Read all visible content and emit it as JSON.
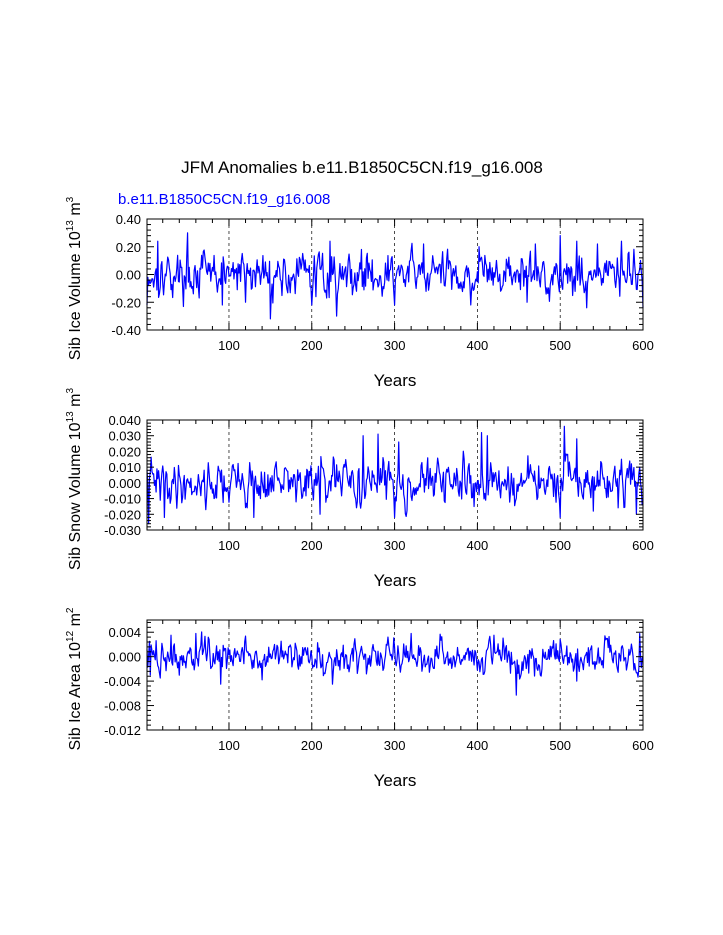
{
  "title": "JFM Anomalies b.e11.B1850C5CN.f19_g16.008",
  "subtitle": "b.e11.B1850C5CN.f19_g16.008",
  "colors": {
    "series": "#0000ff",
    "axes": "#000000"
  },
  "chart_data": [
    {
      "type": "line",
      "id": "ice-volume",
      "ylabel": {
        "text": "Sib Ice Volume 10",
        "exp": "13",
        "unit": " m",
        "unit_exp": "3"
      },
      "xlabel": "Years",
      "xlim": [
        1,
        600
      ],
      "ylim": [
        -0.4,
        0.4
      ],
      "xticks": [
        100,
        200,
        300,
        400,
        500,
        600
      ],
      "yticks": [
        -0.4,
        -0.2,
        0.0,
        0.2,
        0.4
      ],
      "ytick_labels": [
        "-0.40",
        "-0.20",
        "0.00",
        "0.20",
        "0.40"
      ],
      "grid_x": true,
      "series": [
        {
          "name": "b.e11.B1850C5CN.f19_g16.008",
          "noise_amp": 0.1,
          "spikes": [
            [
              1,
              -0.22
            ],
            [
              14,
              0.24
            ],
            [
              50,
              0.3
            ],
            [
              92,
              -0.22
            ],
            [
              120,
              -0.2
            ],
            [
              150,
              -0.32
            ],
            [
              200,
              -0.22
            ],
            [
              222,
              0.24
            ],
            [
              230,
              -0.3
            ],
            [
              260,
              0.18
            ],
            [
              300,
              -0.22
            ],
            [
              335,
              0.22
            ],
            [
              392,
              -0.22
            ],
            [
              402,
              0.2
            ],
            [
              460,
              -0.2
            ],
            [
              470,
              0.22
            ],
            [
              500,
              0.28
            ],
            [
              520,
              0.24
            ],
            [
              532,
              -0.24
            ],
            [
              545,
              0.22
            ],
            [
              574,
              0.24
            ],
            [
              600,
              -0.24
            ]
          ],
          "seed": 17,
          "x": [
            1,
            600
          ]
        }
      ]
    },
    {
      "type": "line",
      "id": "snow-volume",
      "ylabel": {
        "text": "Sib Snow Volume 10",
        "exp": "13",
        "unit": " m",
        "unit_exp": "3"
      },
      "xlabel": "Years",
      "xlim": [
        1,
        600
      ],
      "ylim": [
        -0.03,
        0.04
      ],
      "xticks": [
        100,
        200,
        300,
        400,
        500,
        600
      ],
      "yticks": [
        -0.03,
        -0.02,
        -0.01,
        0.0,
        0.01,
        0.02,
        0.03,
        0.04
      ],
      "ytick_labels": [
        "-0.030",
        "-0.020",
        "-0.010",
        "0.000",
        "0.010",
        "0.020",
        "0.030",
        "0.040"
      ],
      "grid_x": true,
      "series": [
        {
          "name": "b.e11.B1850C5CN.f19_g16.008",
          "noise_amp": 0.009,
          "spikes": [
            [
              3,
              -0.026
            ],
            [
              22,
              -0.022
            ],
            [
              130,
              -0.022
            ],
            [
              210,
              -0.02
            ],
            [
              262,
              0.03
            ],
            [
              280,
              0.031
            ],
            [
              300,
              -0.022
            ],
            [
              305,
              0.026
            ],
            [
              405,
              0.032
            ],
            [
              412,
              0.03
            ],
            [
              500,
              -0.022
            ],
            [
              505,
              0.036
            ],
            [
              520,
              0.028
            ],
            [
              540,
              -0.018
            ],
            [
              592,
              -0.02
            ]
          ],
          "seed": 41,
          "x": [
            1,
            600
          ]
        }
      ]
    },
    {
      "type": "line",
      "id": "ice-area",
      "ylabel": {
        "text": "Sib Ice Area 10",
        "exp": "12",
        "unit": " m",
        "unit_exp": "2"
      },
      "xlabel": "Years",
      "xlim": [
        1,
        600
      ],
      "ylim": [
        -0.012,
        0.006
      ],
      "xticks": [
        100,
        200,
        300,
        400,
        500,
        600
      ],
      "yticks": [
        -0.012,
        -0.008,
        -0.004,
        0.0,
        0.004
      ],
      "ytick_labels": [
        "-0.012",
        "-0.008",
        "-0.004",
        "0.000",
        "0.004"
      ],
      "grid_x": true,
      "series": [
        {
          "name": "b.e11.B1850C5CN.f19_g16.008",
          "noise_amp": 0.0018,
          "spikes": [
            [
              5,
              -0.003
            ],
            [
              30,
              0.0035
            ],
            [
              60,
              0.0038
            ],
            [
              90,
              -0.0045
            ],
            [
              140,
              -0.0038
            ],
            [
              225,
              -0.0045
            ],
            [
              320,
              0.0038
            ],
            [
              420,
              0.0035
            ],
            [
              447,
              -0.0063
            ],
            [
              520,
              -0.004
            ],
            [
              596,
              0.0038
            ]
          ],
          "seed": 73,
          "x": [
            1,
            600
          ]
        }
      ]
    }
  ]
}
